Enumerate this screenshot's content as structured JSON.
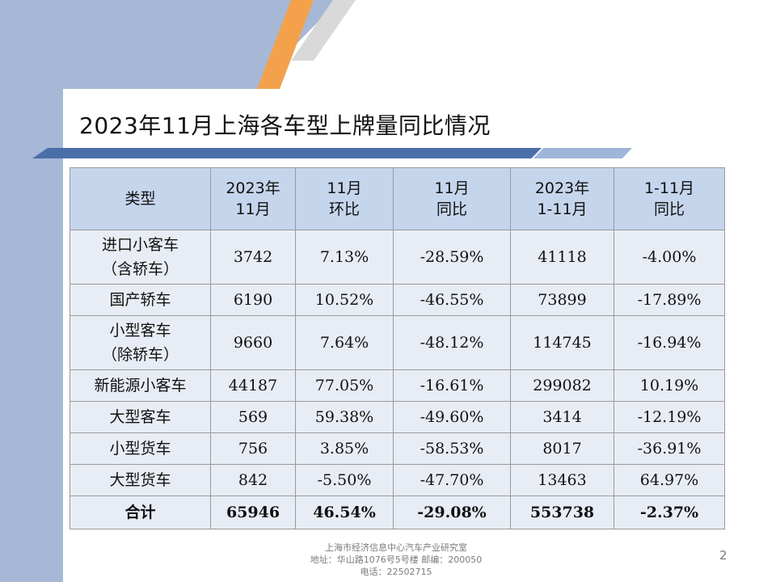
{
  "title": "2023年11月上海各车型上牌量同比情况",
  "table": {
    "headers": [
      {
        "line1": "类型",
        "line2": ""
      },
      {
        "line1": "2023年",
        "line2": "11月"
      },
      {
        "line1": "11月",
        "line2": "环比"
      },
      {
        "line1": "11月",
        "line2": "同比"
      },
      {
        "line1": "2023年",
        "line2": "1-11月"
      },
      {
        "line1": "1-11月",
        "line2": "同比"
      }
    ],
    "rows": [
      {
        "type1": "进口小客车",
        "type2": "（含轿车）",
        "nov": "3742",
        "mom": "7.13%",
        "yoy": "-28.59%",
        "ytd": "41118",
        "ytd_yoy": "-4.00%"
      },
      {
        "type1": "国产轿车",
        "type2": "",
        "nov": "6190",
        "mom": "10.52%",
        "yoy": "-46.55%",
        "ytd": "73899",
        "ytd_yoy": "-17.89%"
      },
      {
        "type1": "小型客车",
        "type2": "（除轿车）",
        "nov": "9660",
        "mom": "7.64%",
        "yoy": "-48.12%",
        "ytd": "114745",
        "ytd_yoy": "-16.94%"
      },
      {
        "type1": "新能源小客车",
        "type2": "",
        "nov": "44187",
        "mom": "77.05%",
        "yoy": "-16.61%",
        "ytd": "299082",
        "ytd_yoy": "10.19%"
      },
      {
        "type1": "大型客车",
        "type2": "",
        "nov": "569",
        "mom": "59.38%",
        "yoy": "-49.60%",
        "ytd": "3414",
        "ytd_yoy": "-12.19%"
      },
      {
        "type1": "小型货车",
        "type2": "",
        "nov": "756",
        "mom": "3.85%",
        "yoy": "-58.53%",
        "ytd": "8017",
        "ytd_yoy": "-36.91%"
      },
      {
        "type1": "大型货车",
        "type2": "",
        "nov": "842",
        "mom": "-5.50%",
        "yoy": "-47.70%",
        "ytd": "13463",
        "ytd_yoy": "64.97%"
      }
    ],
    "total": {
      "type1": "合计",
      "nov": "65946",
      "mom": "46.54%",
      "yoy": "-29.08%",
      "ytd": "553738",
      "ytd_yoy": "-2.37%"
    }
  },
  "footer": {
    "line1": "上海市经济信息中心汽车产业研究室",
    "line2": "地址：华山路1076号5号楼   邮编：200050",
    "line3": "电话：22502715"
  },
  "page_number": "2"
}
